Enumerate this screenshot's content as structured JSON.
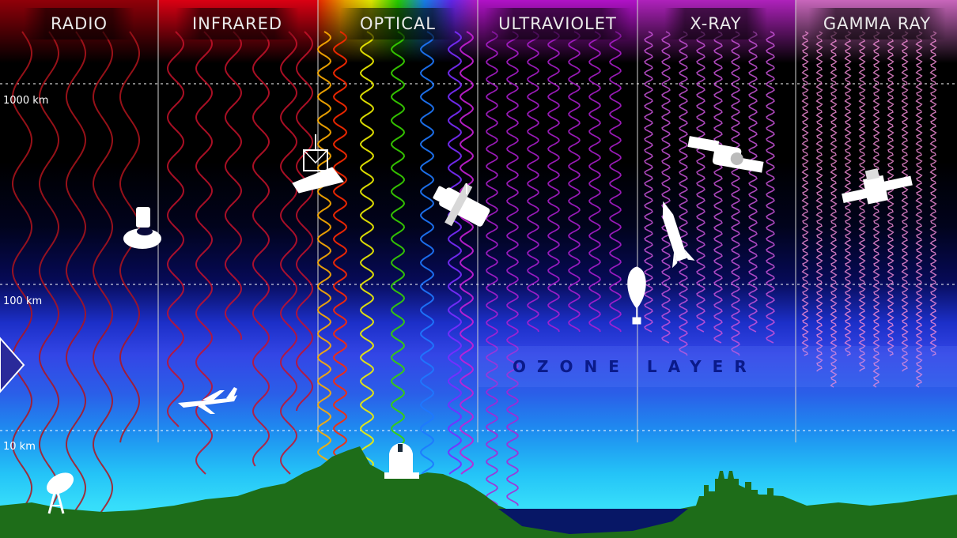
{
  "bands": [
    {
      "label": "RADIO",
      "color": "#c0181d"
    },
    {
      "label": "INFRARED",
      "color": "#d11a2a"
    },
    {
      "label": "OPTICAL",
      "color": "#ffd400"
    },
    {
      "label": "ULTRAVIOLET",
      "color": "#b51fd6"
    },
    {
      "label": "X-RAY",
      "color": "#d54bdc"
    },
    {
      "label": "GAMMA RAY",
      "color": "#f38ad1"
    }
  ],
  "altitudes": [
    {
      "label": "1000 km"
    },
    {
      "label": "100 km"
    },
    {
      "label": "10 km"
    }
  ],
  "ozone_label": "OZONE LAYER",
  "objects": [
    {
      "name": "radio-dish-icon"
    },
    {
      "name": "space-radio-telescope-icon"
    },
    {
      "name": "airplane-icon"
    },
    {
      "name": "infrared-space-telescope-icon"
    },
    {
      "name": "ground-observatory-icon"
    },
    {
      "name": "optical-space-telescope-icon"
    },
    {
      "name": "balloon-icon"
    },
    {
      "name": "rocket-icon"
    },
    {
      "name": "xray-satellite-icon"
    },
    {
      "name": "gamma-ray-satellite-icon"
    }
  ],
  "colors": {
    "ground": "#1f6b1a",
    "water": "#071766",
    "sky_top": "#000000",
    "sky_bottom": "#3ee6fb"
  }
}
